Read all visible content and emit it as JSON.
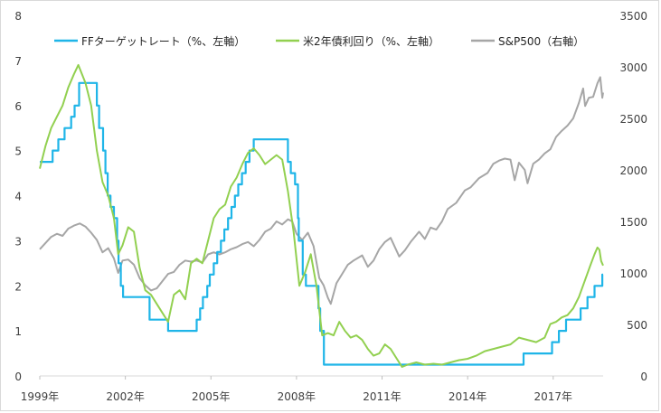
{
  "chart_data": {
    "type": "line",
    "title": "",
    "xlabel": "",
    "ylabel_left": "",
    "ylabel_right": "",
    "x_range": [
      1999.0,
      2018.75
    ],
    "x_tick_values": [
      1999,
      2002,
      2005,
      2008,
      2011,
      2014,
      2017
    ],
    "x_tick_labels": [
      "1999年",
      "2002年",
      "2005年",
      "2008年",
      "2011年",
      "2014年",
      "2017年"
    ],
    "y_left_range": [
      0,
      8
    ],
    "y_left_ticks": [
      "0",
      "1",
      "2",
      "3",
      "4",
      "5",
      "6",
      "7",
      "8"
    ],
    "y_right_range": [
      0,
      3500
    ],
    "y_right_ticks": [
      "0",
      "500",
      "1000",
      "1500",
      "2000",
      "2500",
      "3000",
      "3500"
    ],
    "grid": false,
    "legend_position": "top",
    "series": [
      {
        "name": "FFターゲットレート（%、左軸）",
        "axis": "left",
        "color": "#1fb5e8",
        "step": true,
        "points": [
          [
            1999.0,
            4.75
          ],
          [
            1999.45,
            5.0
          ],
          [
            1999.65,
            5.25
          ],
          [
            1999.87,
            5.5
          ],
          [
            2000.1,
            5.75
          ],
          [
            2000.22,
            6.0
          ],
          [
            2000.38,
            6.5
          ],
          [
            2001.0,
            6.0
          ],
          [
            2001.08,
            5.5
          ],
          [
            2001.22,
            5.0
          ],
          [
            2001.3,
            4.5
          ],
          [
            2001.38,
            4.0
          ],
          [
            2001.48,
            3.75
          ],
          [
            2001.6,
            3.5
          ],
          [
            2001.71,
            3.0
          ],
          [
            2001.76,
            2.5
          ],
          [
            2001.84,
            2.0
          ],
          [
            2001.92,
            1.75
          ],
          [
            2002.85,
            1.25
          ],
          [
            2003.5,
            1.0
          ],
          [
            2004.5,
            1.25
          ],
          [
            2004.62,
            1.5
          ],
          [
            2004.72,
            1.75
          ],
          [
            2004.87,
            2.0
          ],
          [
            2004.96,
            2.25
          ],
          [
            2005.1,
            2.5
          ],
          [
            2005.22,
            2.75
          ],
          [
            2005.35,
            3.0
          ],
          [
            2005.47,
            3.25
          ],
          [
            2005.6,
            3.5
          ],
          [
            2005.72,
            3.75
          ],
          [
            2005.84,
            4.0
          ],
          [
            2005.96,
            4.25
          ],
          [
            2006.09,
            4.5
          ],
          [
            2006.22,
            4.75
          ],
          [
            2006.35,
            5.0
          ],
          [
            2006.5,
            5.25
          ],
          [
            2007.7,
            4.75
          ],
          [
            2007.8,
            4.5
          ],
          [
            2007.95,
            4.25
          ],
          [
            2008.05,
            3.5
          ],
          [
            2008.08,
            3.0
          ],
          [
            2008.22,
            2.25
          ],
          [
            2008.33,
            2.0
          ],
          [
            2008.77,
            1.5
          ],
          [
            2008.83,
            1.0
          ],
          [
            2008.96,
            0.25
          ],
          [
            2015.96,
            0.5
          ],
          [
            2016.96,
            0.75
          ],
          [
            2017.2,
            1.0
          ],
          [
            2017.45,
            1.25
          ],
          [
            2017.96,
            1.5
          ],
          [
            2018.2,
            1.75
          ],
          [
            2018.45,
            2.0
          ],
          [
            2018.72,
            2.25
          ],
          [
            2018.75,
            2.25
          ]
        ]
      },
      {
        "name": "米2年債利回り（%、左軸）",
        "axis": "left",
        "color": "#92d050",
        "step": false,
        "points": [
          [
            1999.0,
            4.6
          ],
          [
            1999.2,
            5.1
          ],
          [
            1999.4,
            5.5
          ],
          [
            1999.6,
            5.75
          ],
          [
            1999.8,
            6.0
          ],
          [
            2000.0,
            6.4
          ],
          [
            2000.2,
            6.7
          ],
          [
            2000.35,
            6.9
          ],
          [
            2000.6,
            6.5
          ],
          [
            2000.8,
            6.0
          ],
          [
            2001.0,
            5.0
          ],
          [
            2001.2,
            4.3
          ],
          [
            2001.4,
            4.0
          ],
          [
            2001.6,
            3.5
          ],
          [
            2001.75,
            2.7
          ],
          [
            2001.9,
            2.9
          ],
          [
            2002.1,
            3.3
          ],
          [
            2002.3,
            3.2
          ],
          [
            2002.5,
            2.4
          ],
          [
            2002.7,
            1.9
          ],
          [
            2002.9,
            1.8
          ],
          [
            2003.1,
            1.6
          ],
          [
            2003.3,
            1.4
          ],
          [
            2003.5,
            1.2
          ],
          [
            2003.7,
            1.8
          ],
          [
            2003.9,
            1.9
          ],
          [
            2004.1,
            1.7
          ],
          [
            2004.3,
            2.5
          ],
          [
            2004.5,
            2.6
          ],
          [
            2004.7,
            2.5
          ],
          [
            2004.9,
            3.0
          ],
          [
            2005.1,
            3.5
          ],
          [
            2005.3,
            3.7
          ],
          [
            2005.5,
            3.8
          ],
          [
            2005.7,
            4.2
          ],
          [
            2005.9,
            4.4
          ],
          [
            2006.1,
            4.7
          ],
          [
            2006.3,
            4.95
          ],
          [
            2006.5,
            5.05
          ],
          [
            2006.7,
            4.9
          ],
          [
            2006.9,
            4.7
          ],
          [
            2007.1,
            4.8
          ],
          [
            2007.3,
            4.9
          ],
          [
            2007.5,
            4.8
          ],
          [
            2007.7,
            4.1
          ],
          [
            2007.9,
            3.2
          ],
          [
            2008.1,
            2.0
          ],
          [
            2008.3,
            2.3
          ],
          [
            2008.5,
            2.7
          ],
          [
            2008.7,
            2.0
          ],
          [
            2008.9,
            0.9
          ],
          [
            2009.1,
            0.95
          ],
          [
            2009.3,
            0.9
          ],
          [
            2009.5,
            1.2
          ],
          [
            2009.7,
            1.0
          ],
          [
            2009.9,
            0.85
          ],
          [
            2010.1,
            0.9
          ],
          [
            2010.3,
            0.8
          ],
          [
            2010.5,
            0.6
          ],
          [
            2010.7,
            0.45
          ],
          [
            2010.9,
            0.5
          ],
          [
            2011.1,
            0.7
          ],
          [
            2011.3,
            0.6
          ],
          [
            2011.5,
            0.4
          ],
          [
            2011.7,
            0.2
          ],
          [
            2011.9,
            0.25
          ],
          [
            2012.2,
            0.3
          ],
          [
            2012.5,
            0.25
          ],
          [
            2012.8,
            0.27
          ],
          [
            2013.1,
            0.25
          ],
          [
            2013.4,
            0.3
          ],
          [
            2013.7,
            0.35
          ],
          [
            2014.0,
            0.38
          ],
          [
            2014.3,
            0.45
          ],
          [
            2014.6,
            0.55
          ],
          [
            2014.9,
            0.6
          ],
          [
            2015.2,
            0.65
          ],
          [
            2015.5,
            0.7
          ],
          [
            2015.8,
            0.85
          ],
          [
            2016.1,
            0.8
          ],
          [
            2016.4,
            0.75
          ],
          [
            2016.7,
            0.85
          ],
          [
            2016.9,
            1.15
          ],
          [
            2017.1,
            1.2
          ],
          [
            2017.3,
            1.3
          ],
          [
            2017.5,
            1.35
          ],
          [
            2017.7,
            1.5
          ],
          [
            2017.9,
            1.75
          ],
          [
            2018.1,
            2.1
          ],
          [
            2018.3,
            2.45
          ],
          [
            2018.45,
            2.7
          ],
          [
            2018.55,
            2.85
          ],
          [
            2018.62,
            2.8
          ],
          [
            2018.68,
            2.55
          ],
          [
            2018.75,
            2.45
          ]
        ]
      },
      {
        "name": "S&P500（右軸）",
        "axis": "right",
        "color": "#a6a6a6",
        "step": false,
        "points": [
          [
            1999.0,
            1230
          ],
          [
            1999.2,
            1290
          ],
          [
            1999.4,
            1350
          ],
          [
            1999.6,
            1380
          ],
          [
            1999.8,
            1360
          ],
          [
            2000.0,
            1430
          ],
          [
            2000.2,
            1460
          ],
          [
            2000.4,
            1480
          ],
          [
            2000.6,
            1450
          ],
          [
            2000.8,
            1390
          ],
          [
            2001.0,
            1320
          ],
          [
            2001.2,
            1200
          ],
          [
            2001.4,
            1240
          ],
          [
            2001.6,
            1140
          ],
          [
            2001.75,
            1000
          ],
          [
            2001.9,
            1120
          ],
          [
            2002.1,
            1130
          ],
          [
            2002.3,
            1080
          ],
          [
            2002.5,
            950
          ],
          [
            2002.7,
            880
          ],
          [
            2002.9,
            830
          ],
          [
            2003.1,
            850
          ],
          [
            2003.3,
            920
          ],
          [
            2003.5,
            990
          ],
          [
            2003.7,
            1010
          ],
          [
            2003.9,
            1080
          ],
          [
            2004.1,
            1120
          ],
          [
            2004.3,
            1110
          ],
          [
            2004.5,
            1120
          ],
          [
            2004.7,
            1100
          ],
          [
            2004.9,
            1180
          ],
          [
            2005.1,
            1200
          ],
          [
            2005.3,
            1180
          ],
          [
            2005.5,
            1200
          ],
          [
            2005.7,
            1230
          ],
          [
            2005.9,
            1250
          ],
          [
            2006.1,
            1280
          ],
          [
            2006.3,
            1300
          ],
          [
            2006.5,
            1260
          ],
          [
            2006.7,
            1320
          ],
          [
            2006.9,
            1400
          ],
          [
            2007.1,
            1430
          ],
          [
            2007.3,
            1500
          ],
          [
            2007.5,
            1470
          ],
          [
            2007.7,
            1520
          ],
          [
            2007.85,
            1500
          ],
          [
            2008.0,
            1380
          ],
          [
            2008.2,
            1320
          ],
          [
            2008.4,
            1390
          ],
          [
            2008.6,
            1260
          ],
          [
            2008.8,
            950
          ],
          [
            2008.95,
            880
          ],
          [
            2009.1,
            760
          ],
          [
            2009.2,
            700
          ],
          [
            2009.4,
            900
          ],
          [
            2009.6,
            990
          ],
          [
            2009.8,
            1080
          ],
          [
            2010.0,
            1120
          ],
          [
            2010.3,
            1170
          ],
          [
            2010.5,
            1060
          ],
          [
            2010.7,
            1120
          ],
          [
            2010.9,
            1230
          ],
          [
            2011.1,
            1300
          ],
          [
            2011.3,
            1340
          ],
          [
            2011.6,
            1160
          ],
          [
            2011.8,
            1220
          ],
          [
            2012.0,
            1300
          ],
          [
            2012.3,
            1400
          ],
          [
            2012.5,
            1330
          ],
          [
            2012.7,
            1440
          ],
          [
            2012.9,
            1420
          ],
          [
            2013.1,
            1500
          ],
          [
            2013.3,
            1620
          ],
          [
            2013.6,
            1680
          ],
          [
            2013.9,
            1800
          ],
          [
            2014.1,
            1830
          ],
          [
            2014.4,
            1920
          ],
          [
            2014.7,
            1970
          ],
          [
            2014.9,
            2060
          ],
          [
            2015.1,
            2090
          ],
          [
            2015.3,
            2110
          ],
          [
            2015.5,
            2100
          ],
          [
            2015.65,
            1900
          ],
          [
            2015.8,
            2070
          ],
          [
            2016.0,
            2000
          ],
          [
            2016.1,
            1870
          ],
          [
            2016.3,
            2060
          ],
          [
            2016.5,
            2100
          ],
          [
            2016.7,
            2160
          ],
          [
            2016.9,
            2200
          ],
          [
            2017.1,
            2320
          ],
          [
            2017.3,
            2380
          ],
          [
            2017.5,
            2430
          ],
          [
            2017.7,
            2500
          ],
          [
            2017.9,
            2650
          ],
          [
            2018.05,
            2790
          ],
          [
            2018.12,
            2620
          ],
          [
            2018.25,
            2700
          ],
          [
            2018.4,
            2710
          ],
          [
            2018.55,
            2840
          ],
          [
            2018.65,
            2900
          ],
          [
            2018.72,
            2700
          ],
          [
            2018.75,
            2750
          ]
        ]
      }
    ]
  }
}
